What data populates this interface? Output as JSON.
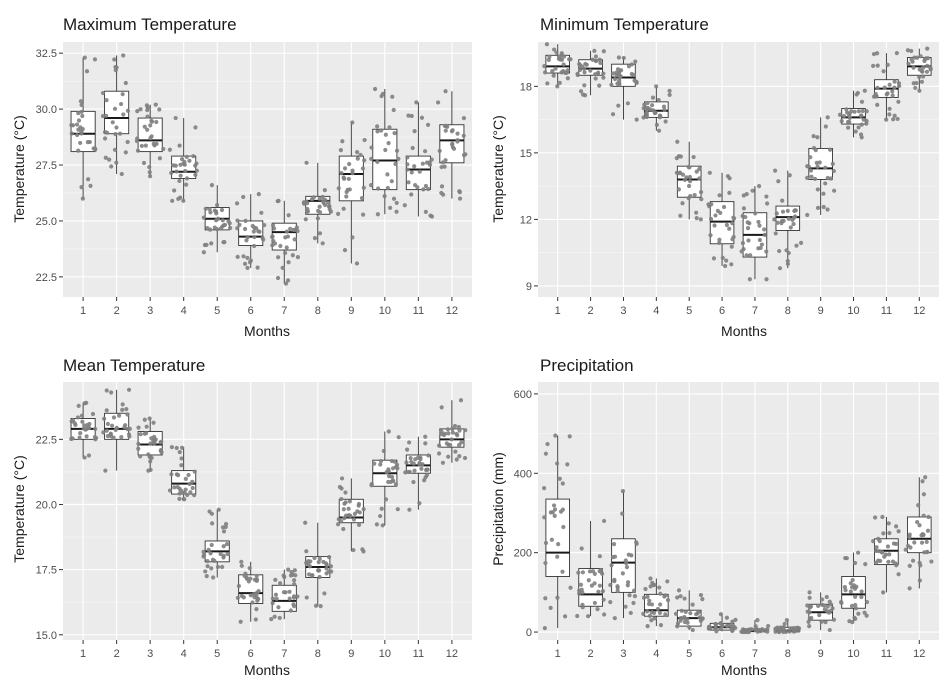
{
  "chart_data": [
    {
      "type": "boxplot",
      "title": "Maximum Temperature",
      "xlabel": "Months",
      "ylabel": "Temperature (°C)",
      "categories": [
        "1",
        "2",
        "3",
        "4",
        "5",
        "6",
        "7",
        "8",
        "9",
        "10",
        "11",
        "12"
      ],
      "yticks": [
        "22.5",
        "25.0",
        "27.5",
        "30.0",
        "32.5"
      ],
      "ylim": [
        21.6,
        33.0
      ],
      "grid": true,
      "point_color": "#808080",
      "boxes": [
        {
          "min": 26.0,
          "q1": 28.1,
          "median": 28.9,
          "q3": 29.9,
          "max": 32.3
        },
        {
          "min": 27.1,
          "q1": 28.9,
          "median": 29.6,
          "q3": 30.8,
          "max": 32.4
        },
        {
          "min": 27.0,
          "q1": 28.1,
          "median": 28.6,
          "q3": 29.6,
          "max": 30.2
        },
        {
          "min": 25.9,
          "q1": 26.9,
          "median": 27.2,
          "q3": 27.9,
          "max": 29.6
        },
        {
          "min": 23.6,
          "q1": 24.6,
          "median": 25.1,
          "q3": 25.6,
          "max": 26.6
        },
        {
          "min": 22.9,
          "q1": 23.9,
          "median": 24.3,
          "q3": 25.0,
          "max": 26.2
        },
        {
          "min": 22.2,
          "q1": 23.7,
          "median": 24.5,
          "q3": 24.9,
          "max": 25.9
        },
        {
          "min": 24.0,
          "q1": 25.3,
          "median": 25.9,
          "q3": 26.1,
          "max": 27.6
        },
        {
          "min": 23.1,
          "q1": 25.9,
          "median": 27.1,
          "q3": 27.9,
          "max": 29.4
        },
        {
          "min": 25.3,
          "q1": 26.4,
          "median": 27.7,
          "q3": 29.1,
          "max": 30.9
        },
        {
          "min": 25.2,
          "q1": 26.4,
          "median": 27.3,
          "q3": 27.9,
          "max": 30.3
        },
        {
          "min": 26.0,
          "q1": 27.6,
          "median": 28.6,
          "q3": 29.3,
          "max": 30.8
        }
      ]
    },
    {
      "type": "boxplot",
      "title": "Minimum Temperature",
      "xlabel": "Months",
      "ylabel": "Temperature (°C)",
      "categories": [
        "1",
        "2",
        "3",
        "4",
        "5",
        "6",
        "7",
        "8",
        "9",
        "10",
        "11",
        "12"
      ],
      "yticks": [
        "9",
        "12",
        "15",
        "18"
      ],
      "ylim": [
        8.5,
        20.0
      ],
      "grid": true,
      "point_color": "#808080",
      "boxes": [
        {
          "min": 18.0,
          "q1": 18.6,
          "median": 18.9,
          "q3": 19.4,
          "max": 19.9
        },
        {
          "min": 17.6,
          "q1": 18.5,
          "median": 18.8,
          "q3": 19.2,
          "max": 19.6
        },
        {
          "min": 16.5,
          "q1": 18.0,
          "median": 18.4,
          "q3": 19.0,
          "max": 19.3
        },
        {
          "min": 16.0,
          "q1": 16.6,
          "median": 16.9,
          "q3": 17.3,
          "max": 18.0
        },
        {
          "min": 12.0,
          "q1": 13.0,
          "median": 13.8,
          "q3": 14.4,
          "max": 15.5
        },
        {
          "min": 9.9,
          "q1": 10.9,
          "median": 11.9,
          "q3": 12.8,
          "max": 14.1
        },
        {
          "min": 9.3,
          "q1": 10.3,
          "median": 11.3,
          "q3": 12.3,
          "max": 13.5
        },
        {
          "min": 9.8,
          "q1": 11.5,
          "median": 12.1,
          "q3": 12.6,
          "max": 14.2
        },
        {
          "min": 12.2,
          "q1": 13.8,
          "median": 14.3,
          "q3": 15.2,
          "max": 16.6
        },
        {
          "min": 15.7,
          "q1": 16.3,
          "median": 16.6,
          "q3": 17.0,
          "max": 17.8
        },
        {
          "min": 16.5,
          "q1": 17.5,
          "median": 17.9,
          "q3": 18.3,
          "max": 19.5
        },
        {
          "min": 17.8,
          "q1": 18.5,
          "median": 18.9,
          "q3": 19.3,
          "max": 19.7
        }
      ]
    },
    {
      "type": "boxplot",
      "title": "Mean Temperature",
      "xlabel": "Months",
      "ylabel": "Temperature (°C)",
      "categories": [
        "1",
        "2",
        "3",
        "4",
        "5",
        "6",
        "7",
        "8",
        "9",
        "10",
        "11",
        "12"
      ],
      "yticks": [
        "15.0",
        "17.5",
        "20.0",
        "22.5"
      ],
      "ylim": [
        14.8,
        24.7
      ],
      "grid": true,
      "point_color": "#808080",
      "boxes": [
        {
          "min": 21.8,
          "q1": 22.5,
          "median": 22.9,
          "q3": 23.3,
          "max": 23.9
        },
        {
          "min": 21.3,
          "q1": 22.5,
          "median": 22.9,
          "q3": 23.5,
          "max": 24.4
        },
        {
          "min": 21.3,
          "q1": 21.9,
          "median": 22.3,
          "q3": 22.8,
          "max": 23.3
        },
        {
          "min": 20.2,
          "q1": 20.4,
          "median": 20.8,
          "q3": 21.3,
          "max": 22.2
        },
        {
          "min": 17.2,
          "q1": 17.8,
          "median": 18.2,
          "q3": 18.6,
          "max": 19.8
        },
        {
          "min": 15.5,
          "q1": 16.2,
          "median": 16.6,
          "q3": 17.3,
          "max": 17.8
        },
        {
          "min": 15.6,
          "q1": 15.9,
          "median": 16.3,
          "q3": 16.9,
          "max": 17.5
        },
        {
          "min": 16.1,
          "q1": 17.2,
          "median": 17.6,
          "q3": 18.0,
          "max": 19.3
        },
        {
          "min": 18.2,
          "q1": 19.3,
          "median": 19.5,
          "q3": 20.2,
          "max": 21.0
        },
        {
          "min": 19.2,
          "q1": 20.7,
          "median": 21.2,
          "q3": 21.7,
          "max": 22.8
        },
        {
          "min": 19.8,
          "q1": 21.2,
          "median": 21.5,
          "q3": 21.9,
          "max": 22.6
        },
        {
          "min": 21.6,
          "q1": 22.2,
          "median": 22.5,
          "q3": 22.9,
          "max": 24.0
        }
      ]
    },
    {
      "type": "boxplot",
      "title": "Precipitation",
      "xlabel": "Months",
      "ylabel": "Precipitation (mm)",
      "categories": [
        "1",
        "2",
        "3",
        "4",
        "5",
        "6",
        "7",
        "8",
        "9",
        "10",
        "11",
        "12"
      ],
      "yticks": [
        "0",
        "200",
        "400",
        "600"
      ],
      "ylim": [
        -20,
        630
      ],
      "grid": true,
      "point_color": "#808080",
      "boxes": [
        {
          "min": 10,
          "q1": 140,
          "median": 200,
          "q3": 335,
          "max": 495
        },
        {
          "min": 40,
          "q1": 65,
          "median": 95,
          "q3": 160,
          "max": 280
        },
        {
          "min": 35,
          "q1": 100,
          "median": 175,
          "q3": 235,
          "max": 355
        },
        {
          "min": 15,
          "q1": 40,
          "median": 55,
          "q3": 95,
          "max": 135
        },
        {
          "min": 5,
          "q1": 15,
          "median": 35,
          "q3": 55,
          "max": 105
        },
        {
          "min": 2,
          "q1": 5,
          "median": 12,
          "q3": 22,
          "max": 45
        },
        {
          "min": 0,
          "q1": 1,
          "median": 3,
          "q3": 8,
          "max": 30
        },
        {
          "min": 0,
          "q1": 1,
          "median": 4,
          "q3": 12,
          "max": 30
        },
        {
          "min": 5,
          "q1": 30,
          "median": 50,
          "q3": 70,
          "max": 100
        },
        {
          "min": 25,
          "q1": 60,
          "median": 95,
          "q3": 140,
          "max": 200
        },
        {
          "min": 100,
          "q1": 170,
          "median": 205,
          "q3": 235,
          "max": 290
        },
        {
          "min": 110,
          "q1": 200,
          "median": 235,
          "q3": 290,
          "max": 390
        }
      ]
    }
  ]
}
